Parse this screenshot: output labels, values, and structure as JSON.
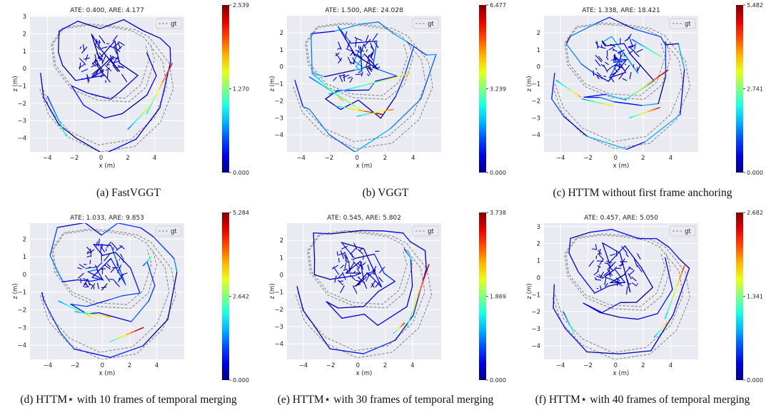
{
  "figure": {
    "legend_label": "gt",
    "axis_labels": {
      "x": "x (m)",
      "z": "z (m)"
    },
    "colormap": "jet"
  },
  "chart_data": [
    {
      "type": "line",
      "title": "ATE: 0.400, ARE: 4.177",
      "caption": "(a) FastVGGT",
      "xlabel": "x (m)",
      "ylabel": "z (m)",
      "xlim": [
        -5.3,
        6.2
      ],
      "ylim": [
        -4.8,
        3.05
      ],
      "xticks": [
        -4,
        -2,
        0,
        2,
        4
      ],
      "yticks": [
        3,
        2,
        1,
        0,
        -1,
        -2,
        -3,
        -4
      ],
      "colorbar": {
        "min": 0.0,
        "max": 2.539,
        "mid": 1.27,
        "labels": [
          "2.539",
          "1.270",
          "0.000"
        ]
      },
      "error_level": 0.25,
      "hot_segments": [
        [
          3.4,
          -2.6,
          5.3,
          0.3,
          0.9
        ],
        [
          2.0,
          -3.5,
          3.6,
          -2.2,
          0.6
        ],
        [
          -4.0,
          -1.6,
          -2.6,
          -3.9,
          0.4
        ]
      ]
    },
    {
      "type": "line",
      "title": "ATE: 1.500, ARE: 24.028",
      "caption": "(b) VGGT",
      "xlabel": "x (m)",
      "ylabel": "z (m)",
      "xlim": [
        -5.0,
        6.0
      ],
      "ylim": [
        -5.0,
        3.0
      ],
      "xticks": [
        -4,
        -2,
        0,
        2,
        4
      ],
      "yticks": [
        2,
        1,
        0,
        -1,
        -2,
        -3,
        -4
      ],
      "colorbar": {
        "min": 0.0,
        "max": 6.477,
        "mid": 3.239,
        "labels": [
          "6.477",
          "3.239",
          "0.000"
        ]
      },
      "error_level": 0.6,
      "hot_segments": [
        [
          -1.5,
          -2.3,
          1.8,
          -2.8,
          0.95
        ],
        [
          -3.2,
          -0.4,
          -1.0,
          -2.0,
          0.7
        ],
        [
          -2.0,
          -1.6,
          3.8,
          -0.4,
          0.65
        ],
        [
          0.0,
          -2.9,
          2.6,
          -2.5,
          0.75
        ],
        [
          -3.4,
          -0.6,
          0.2,
          -2.5,
          0.55
        ]
      ]
    },
    {
      "type": "line",
      "title": "ATE: 1.338, ARE: 18.421",
      "caption": "(c) HTTM without first frame anchoring",
      "xlabel": "x (m)",
      "ylabel": "z (m)",
      "xlim": [
        -5.2,
        6.0
      ],
      "ylim": [
        -5.0,
        3.0
      ],
      "xticks": [
        -4,
        -2,
        0,
        2,
        4
      ],
      "yticks": [
        2,
        1,
        0,
        -1,
        -2,
        -3,
        -4
      ],
      "colorbar": {
        "min": 0.0,
        "max": 5.482,
        "mid": 2.741,
        "labels": [
          "5.482",
          "2.741",
          "0.000"
        ]
      },
      "error_level": 0.55,
      "hot_segments": [
        [
          0.8,
          -1.9,
          3.8,
          -0.2,
          0.95
        ],
        [
          1.0,
          -3.0,
          3.2,
          -2.4,
          0.85
        ],
        [
          -4.3,
          -0.8,
          -2.5,
          -1.8,
          0.7
        ],
        [
          -2.4,
          -1.9,
          -0.2,
          -2.3,
          0.65
        ],
        [
          1.2,
          1.6,
          3.3,
          0.6,
          0.5
        ]
      ]
    },
    {
      "type": "line",
      "title": "ATE: 1.033, ARE: 9.853",
      "caption": "(d) HTTM⋆ with 10 frames of temporal merging",
      "xlabel": "x (m)",
      "ylabel": "z (m)",
      "xlim": [
        -5.3,
        6.0
      ],
      "ylim": [
        -4.8,
        2.9
      ],
      "xticks": [
        -4,
        -2,
        0,
        2,
        4
      ],
      "yticks": [
        2,
        1,
        0,
        -1,
        -2,
        -3,
        -4
      ],
      "colorbar": {
        "min": 0.0,
        "max": 5.284,
        "mid": 2.642,
        "labels": [
          "5.284",
          "2.642",
          "0.000"
        ]
      },
      "error_level": 0.45,
      "hot_segments": [
        [
          0.6,
          -3.8,
          3.0,
          -3.0,
          0.95
        ],
        [
          -3.2,
          -1.5,
          -0.8,
          -2.4,
          0.65
        ],
        [
          -2.0,
          -2.1,
          0.6,
          -2.4,
          0.7
        ],
        [
          3.0,
          0.5,
          3.6,
          1.0,
          0.45
        ]
      ]
    },
    {
      "type": "line",
      "title": "ATE: 0.545, ARE: 5.802",
      "caption": "(e) HTTM⋆ with 30 frames of temporal merging",
      "xlabel": "x (m)",
      "ylabel": "z (m)",
      "xlim": [
        -5.2,
        6.1
      ],
      "ylim": [
        -4.9,
        3.0
      ],
      "xticks": [
        -4,
        -2,
        0,
        2,
        4
      ],
      "yticks": [
        2,
        1,
        0,
        -1,
        -2,
        -3,
        -4
      ],
      "colorbar": {
        "min": 0.0,
        "max": 3.738,
        "mid": 1.869,
        "labels": [
          "3.738",
          "1.869",
          "0.000"
        ]
      },
      "error_level": 0.3,
      "hot_segments": [
        [
          3.6,
          -3.0,
          5.2,
          0.6,
          0.95
        ],
        [
          2.6,
          -3.4,
          3.4,
          -2.8,
          0.85
        ],
        [
          3.4,
          1.5,
          4.0,
          0.8,
          0.4
        ]
      ]
    },
    {
      "type": "line",
      "title": "ATE: 0.457, ARE: 5.050",
      "caption": "(f) HTTM⋆ with 40 frames of temporal merging",
      "xlabel": "x (m)",
      "ylabel": "z (m)",
      "xlim": [
        -5.2,
        6.0
      ],
      "ylim": [
        -4.8,
        3.2
      ],
      "xticks": [
        -4,
        -2,
        0,
        2,
        4
      ],
      "yticks": [
        3,
        2,
        1,
        0,
        -1,
        -2,
        -3,
        -4
      ],
      "colorbar": {
        "min": 0.0,
        "max": 2.682,
        "mid": 1.341,
        "labels": [
          "2.682",
          "1.341",
          "0.000"
        ]
      },
      "error_level": 0.28,
      "hot_segments": [
        [
          3.6,
          -2.4,
          5.0,
          0.7,
          0.8
        ],
        [
          2.8,
          -3.5,
          3.8,
          -2.6,
          0.7
        ],
        [
          -3.8,
          -2.0,
          -3.0,
          -3.3,
          0.45
        ]
      ]
    }
  ]
}
